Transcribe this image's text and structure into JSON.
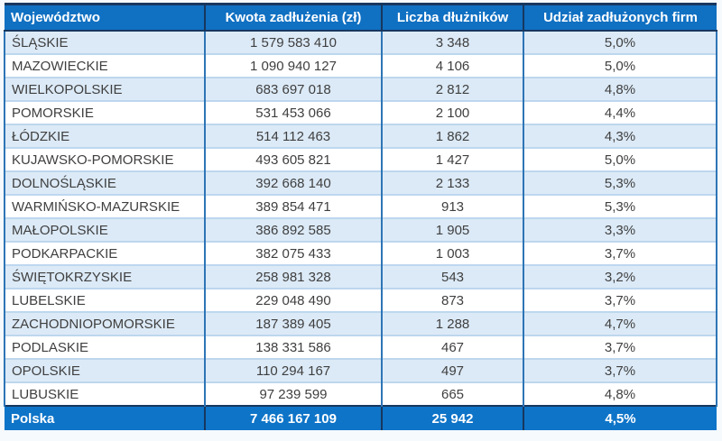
{
  "chart_data": {
    "type": "table",
    "columns": [
      {
        "label": "Województwo",
        "align": "left"
      },
      {
        "label": "Kwota zadłużenia (zł)",
        "align": "center"
      },
      {
        "label": "Liczba dłużników",
        "align": "center"
      },
      {
        "label": "Udział zadłużonych firm",
        "align": "center"
      }
    ],
    "rows": [
      [
        "ŚLĄSKIE",
        "1 579 583 410",
        "3 348",
        "5,0%"
      ],
      [
        "MAZOWIECKIE",
        "1 090 940 127",
        "4 106",
        "5,0%"
      ],
      [
        "WIELKOPOLSKIE",
        "683 697 018",
        "2 812",
        "4,8%"
      ],
      [
        "POMORSKIE",
        "531 453 066",
        "2 100",
        "4,4%"
      ],
      [
        "ŁÓDZKIE",
        "514 112 463",
        "1 862",
        "4,3%"
      ],
      [
        "KUJAWSKO-POMORSKIE",
        "493 605 821",
        "1 427",
        "5,0%"
      ],
      [
        "DOLNOŚLĄSKIE",
        "392 668 140",
        "2 133",
        "5,3%"
      ],
      [
        "WARMIŃSKO-MAZURSKIE",
        "389 854 471",
        "913",
        "5,3%"
      ],
      [
        "MAŁOPOLSKIE",
        "386 892 585",
        "1 905",
        "3,3%"
      ],
      [
        "PODKARPACKIE",
        "382 075 433",
        "1 003",
        "3,7%"
      ],
      [
        "ŚWIĘTOKRZYSKIE",
        "258 981 328",
        "543",
        "3,2%"
      ],
      [
        "LUBELSKIE",
        "229 048 490",
        "873",
        "3,7%"
      ],
      [
        "ZACHODNIOPOMORSKIE",
        "187 389 405",
        "1 288",
        "4,7%"
      ],
      [
        "PODLASKIE",
        "138 331 586",
        "467",
        "3,7%"
      ],
      [
        "OPOLSKIE",
        "110 294 167",
        "497",
        "3,7%"
      ],
      [
        "LUBUSKIE",
        "97 239 599",
        "665",
        "4,8%"
      ]
    ],
    "footer": [
      "Polska",
      "7 466 167 109",
      "25 942",
      "4,5%"
    ]
  },
  "colors": {
    "header_bg": "#1070C2",
    "footer_bg": "#0E74C8",
    "navy_border": "#17375E",
    "grid_blue": "#2E75B6",
    "light_grid": "#BDD7EE",
    "row_alt": "#DCEAF7",
    "row_white": "#FFFFFF",
    "text": "#3F3F3F",
    "header_text": "#FFFFFF"
  }
}
